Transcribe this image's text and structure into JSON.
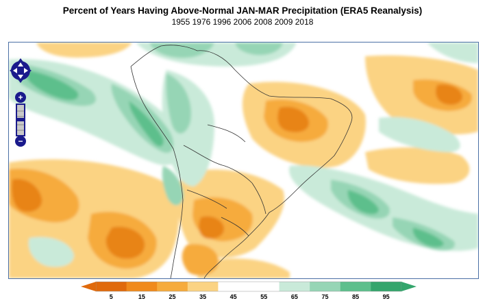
{
  "title": "Percent of Years Having Above-Normal JAN-MAR Precipitation (ERA5 Reanalysis)",
  "subtitle": "1955 1976 1996 2006 2008 2009 2018",
  "map": {
    "region": "South America",
    "colors": {
      "frame": "#4a6fa5",
      "nav": "#1a1a8c"
    }
  },
  "controls": {
    "pan": "pan-arrows-icon",
    "zoom_in": "+",
    "zoom_out": "−"
  },
  "legend": {
    "bins": [
      {
        "label": "5",
        "color": "#e06a0c"
      },
      {
        "label": "15",
        "color": "#f08a1c"
      },
      {
        "label": "25",
        "color": "#f6ab3c"
      },
      {
        "label": "35",
        "color": "#fbd383"
      },
      {
        "label": "45",
        "color": "#ffffff"
      },
      {
        "label": "55",
        "color": "#ffffff"
      },
      {
        "label": "65",
        "color": "#c9ead9"
      },
      {
        "label": "75",
        "color": "#96d5b5"
      },
      {
        "label": "85",
        "color": "#5dbf8c"
      },
      {
        "label": "95",
        "color": "#34a56c"
      }
    ]
  }
}
